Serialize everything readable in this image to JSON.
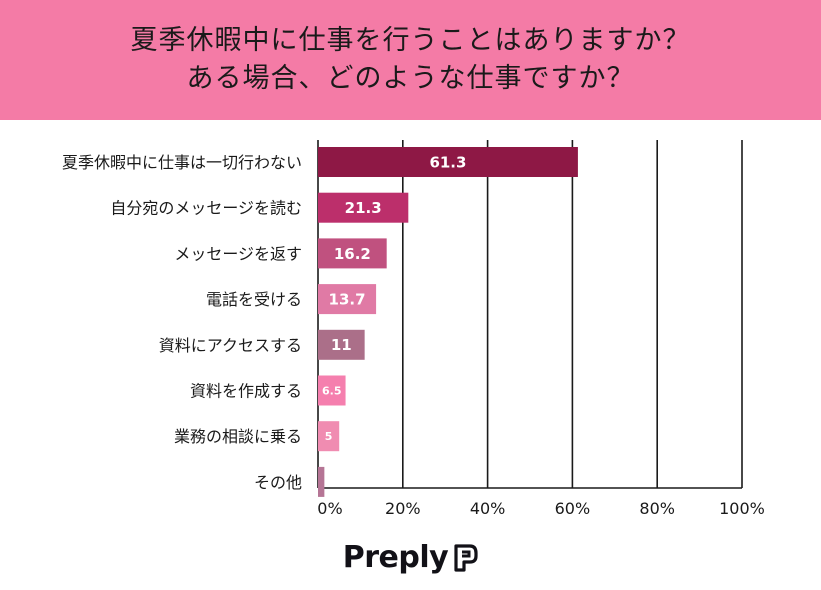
{
  "header": {
    "title_line1": "夏季休暇中に仕事を行うことはありますか？",
    "title_line2": "ある場合、どのような仕事ですか？"
  },
  "chart_data": {
    "type": "bar",
    "orientation": "horizontal",
    "categories": [
      "夏季休暇中に仕事は一切行わない",
      "自分宛のメッセージを読む",
      "メッセージを返す",
      "電話を受ける",
      "資料にアクセスする",
      "資料を作成する",
      "業務の相談に乗る",
      "その他"
    ],
    "values": [
      61.3,
      21.3,
      16.2,
      13.7,
      11,
      6.5,
      5,
      1.5
    ],
    "data_labels": [
      "61.3",
      "21.3",
      "16.2",
      "13.7",
      "11",
      "6.5",
      "5",
      ""
    ],
    "colors": [
      "#8e1845",
      "#bc2f6b",
      "#c0517f",
      "#e07aa5",
      "#ab6f89",
      "#f57fae",
      "#f08cb1",
      "#b57595"
    ],
    "xlim": [
      0,
      100
    ],
    "xticks": [
      "0%",
      "20%",
      "40%",
      "60%",
      "80%",
      "100%"
    ],
    "grid": true
  },
  "brand": {
    "name": "Preply",
    "icon": "preply-logo-icon"
  }
}
